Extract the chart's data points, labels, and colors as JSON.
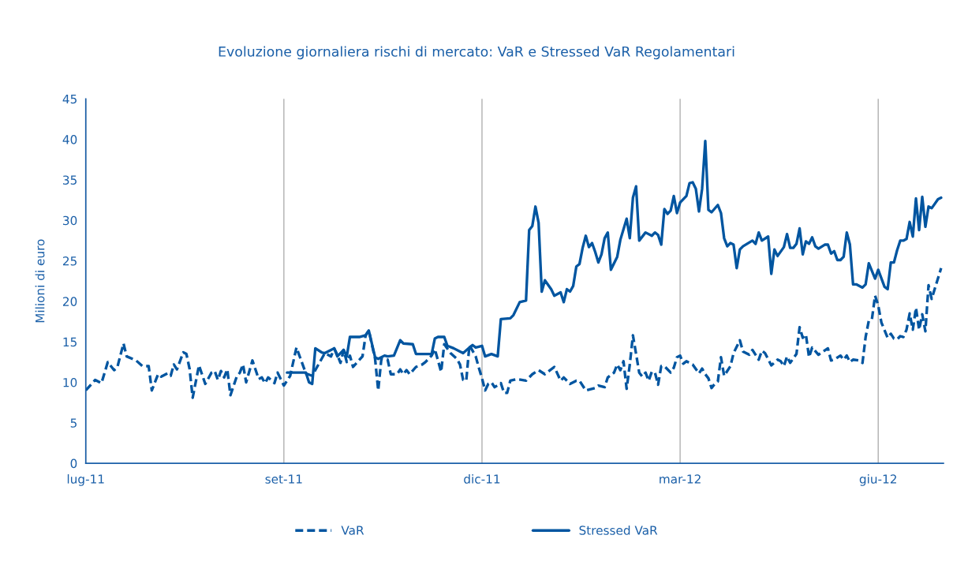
{
  "chart_data": {
    "type": "line",
    "title": "Evoluzione giornaliera rischi di mercato: VaR e Stressed VaR Regolamentari",
    "ylabel": "Milioni di euro",
    "categories": [
      "lug-11",
      null,
      null,
      null,
      null,
      null,
      null,
      null,
      null,
      null,
      null,
      null,
      null,
      null,
      null,
      null,
      null,
      null,
      null,
      null,
      null,
      null,
      null,
      null,
      null,
      null,
      null,
      null,
      null,
      null,
      null,
      null,
      null,
      null,
      null,
      null,
      null,
      null,
      null,
      null,
      null,
      null,
      null,
      null,
      null,
      null,
      null,
      null,
      null,
      null,
      null,
      null,
      null,
      null,
      null,
      null,
      null,
      null,
      null,
      null,
      null,
      null,
      null,
      "set-11",
      null,
      null,
      null,
      null,
      null,
      null,
      null,
      null,
      null,
      null,
      null,
      null,
      null,
      null,
      null,
      null,
      null,
      null,
      null,
      null,
      null,
      null,
      null,
      null,
      null,
      null,
      null,
      null,
      null,
      null,
      null,
      null,
      null,
      null,
      null,
      null,
      null,
      null,
      null,
      null,
      null,
      null,
      null,
      null,
      null,
      null,
      null,
      null,
      null,
      null,
      null,
      null,
      null,
      null,
      null,
      null,
      null,
      null,
      null,
      null,
      null,
      null,
      "dic-11",
      null,
      null,
      null,
      null,
      null,
      null,
      null,
      null,
      null,
      null,
      null,
      null,
      null,
      null,
      null,
      null,
      null,
      null,
      null,
      null,
      null,
      null,
      null,
      null,
      null,
      null,
      null,
      null,
      null,
      null,
      null,
      null,
      null,
      null,
      null,
      null,
      null,
      null,
      null,
      null,
      null,
      null,
      null,
      null,
      null,
      null,
      null,
      null,
      null,
      null,
      null,
      null,
      null,
      null,
      null,
      null,
      null,
      null,
      null,
      null,
      null,
      null,
      "mar-12",
      null,
      null,
      null,
      null,
      null,
      null,
      null,
      null,
      null,
      null,
      null,
      null,
      null,
      null,
      null,
      null,
      null,
      null,
      null,
      null,
      null,
      null,
      null,
      null,
      null,
      null,
      null,
      null,
      null,
      null,
      null,
      null,
      null,
      null,
      null,
      null,
      null,
      null,
      null,
      null,
      null,
      null,
      null,
      null,
      null,
      null,
      null,
      null,
      null,
      null,
      null,
      null,
      null,
      null,
      null,
      null,
      null,
      null,
      null,
      null,
      null,
      null,
      "giu-12",
      null,
      null,
      null,
      null,
      null,
      null,
      null,
      null,
      null,
      null,
      null,
      null,
      null,
      null,
      null,
      null,
      null,
      null,
      null,
      null
    ],
    "ylim": [
      0,
      45
    ],
    "yticks": [
      0,
      5,
      10,
      15,
      20,
      25,
      30,
      35,
      40,
      45
    ],
    "grid": "x",
    "legend": "bottom",
    "series": [
      {
        "name": "VaR",
        "color": "#0055a0",
        "line_style": "dashed",
        "values": [
          9.0,
          null,
          null,
          10.3,
          null,
          9.9,
          null,
          12.5,
          null,
          11.5,
          11.8,
          null,
          14.8,
          13.2,
          null,
          null,
          12.7,
          null,
          12.0,
          null,
          12.0,
          9.0,
          null,
          11.0,
          10.7,
          null,
          11.1,
          10.8,
          12.2,
          11.6,
          null,
          13.7,
          13.5,
          11.7,
          8.1,
          null,
          12.1,
          null,
          9.8,
          null,
          11.2,
          11.4,
          10.3,
          11.4,
          10.6,
          11.6,
          8.4,
          null,
          10.7,
          11.2,
          12.2,
          10.0,
          null,
          12.7,
          null,
          10.4,
          10.6,
          9.9,
          10.6,
          null,
          9.9,
          11.2,
          null,
          9.6,
          null,
          10.8,
          null,
          14.3,
          null,
          null,
          11.1,
          null,
          10.8,
          null,
          12.2,
          null,
          13.6,
          null,
          13.2,
          14.2,
          13.4,
          12.4,
          14.0,
          12.5,
          13.3,
          11.9,
          null,
          null,
          13.2,
          15.8,
          16.4,
          null,
          12.9,
          9.0,
          12.9,
          null,
          12.8,
          11.0,
          null,
          11.0,
          11.6,
          11.0,
          11.5,
          11.0,
          null,
          11.9,
          null,
          12.2,
          12.5,
          null,
          13.3,
          14.1,
          null,
          11.3,
          14.7,
          null,
          13.6,
          null,
          12.9,
          12.2,
          10.3,
          10.2,
          14.6,
          null,
          13.2,
          11.8,
          10.5,
          9.0,
          9.8,
          10.0,
          9.4,
          null,
          9.9,
          8.7,
          8.7,
          10.2,
          null,
          10.4,
          null,
          null,
          10.2,
          null,
          11.0,
          null,
          11.5,
          null,
          11.0,
          null,
          null,
          11.9,
          null,
          10.2,
          10.6,
          null,
          9.8,
          null,
          10.2,
          10.2,
          null,
          9.0,
          null,
          null,
          9.3,
          9.6,
          null,
          9.4,
          10.6,
          null,
          11.2,
          12.2,
          11.5,
          12.6,
          9.2,
          12.2,
          15.8,
          null,
          11.2,
          10.7,
          11.2,
          10.2,
          11.3,
          11.2,
          9.7,
          12.0,
          12.0,
          null,
          11.2,
          11.8,
          13.1,
          13.3,
          12.3,
          12.6,
          null,
          12.2,
          null,
          11.1,
          11.7,
          11.0,
          10.5,
          9.3,
          9.8,
          10.1,
          13.1,
          10.8,
          null,
          12.0,
          13.6,
          null,
          15.2,
          13.8,
          null,
          13.4,
          14.0,
          null,
          12.8,
          13.9,
          13.6,
          null,
          12.1,
          null,
          12.8,
          12.6,
          12.0,
          13.2,
          12.4,
          null,
          13.5,
          16.8,
          15.5,
          15.9,
          13.1,
          14.3,
          null,
          13.4,
          null,
          null,
          14.2,
          12.7,
          12.8,
          null,
          13.3,
          12.8,
          13.3,
          12.5,
          12.8,
          null,
          12.7,
          12.4,
          15.6,
          17.6,
          17.8,
          20.7,
          19.5,
          17.4,
          null,
          15.5,
          16.0,
          15.4,
          15.3,
          15.7,
          15.6,
          16.5,
          18.5,
          16.5,
          19.2,
          16.5,
          18.4,
          16.3,
          22.0,
          20.3,
          null,
          null,
          24.1
        ]
      },
      {
        "name": "Stressed VaR",
        "color": "#0055a0",
        "line_style": "solid",
        "values": [
          null,
          null,
          null,
          null,
          null,
          null,
          null,
          null,
          null,
          null,
          null,
          null,
          null,
          null,
          null,
          null,
          null,
          null,
          null,
          null,
          null,
          null,
          null,
          null,
          null,
          null,
          null,
          null,
          null,
          null,
          null,
          null,
          null,
          null,
          null,
          null,
          null,
          null,
          null,
          null,
          null,
          null,
          null,
          null,
          null,
          null,
          null,
          null,
          null,
          null,
          null,
          null,
          null,
          null,
          null,
          null,
          null,
          null,
          null,
          null,
          null,
          null,
          null,
          null,
          11.2,
          null,
          null,
          null,
          null,
          null,
          11.2,
          10.0,
          9.8,
          14.2,
          null,
          13.7,
          13.6,
          null,
          14.0,
          14.2,
          13.2,
          null,
          14.0,
          13.2,
          15.6,
          null,
          null,
          15.6,
          null,
          15.8,
          16.4,
          null,
          13.1,
          12.9,
          null,
          13.3,
          13.2,
          null,
          13.3,
          null,
          15.2,
          14.8,
          null,
          null,
          14.7,
          13.5,
          null,
          null,
          null,
          null,
          13.5,
          15.4,
          15.6,
          null,
          15.6,
          14.5,
          null,
          14.2,
          null,
          13.8,
          13.6,
          null,
          14.3,
          14.6,
          14.3,
          null,
          14.5,
          13.2,
          null,
          13.5,
          null,
          13.2,
          17.8,
          null,
          null,
          17.9,
          18.3,
          null,
          19.9,
          null,
          20.1,
          28.8,
          29.3,
          31.7,
          29.7,
          21.2,
          22.6,
          null,
          21.5,
          20.7,
          null,
          21.1,
          19.9,
          21.5,
          21.2,
          21.9,
          24.3,
          24.6,
          26.6,
          28.1,
          26.7,
          27.2,
          26.1,
          24.8,
          25.8,
          27.8,
          28.5,
          23.9,
          null,
          25.5,
          27.6,
          null,
          30.2,
          27.8,
          32.8,
          34.2,
          27.5,
          null,
          28.5,
          null,
          28.1,
          28.5,
          28.2,
          27.0,
          31.4,
          30.8,
          31.2,
          33.0,
          30.9,
          32.2,
          null,
          33.0,
          34.6,
          34.7,
          33.9,
          31.1,
          33.9,
          39.8,
          31.3,
          31.0,
          null,
          31.9,
          30.9,
          27.8,
          26.8,
          27.2,
          27.0,
          24.1,
          26.4,
          26.8,
          null,
          null,
          27.5,
          27.1,
          28.5,
          27.5,
          null,
          28.0,
          23.4,
          26.4,
          25.6,
          null,
          26.7,
          28.3,
          26.6,
          26.6,
          27.1,
          29.0,
          25.8,
          27.4,
          27.1,
          27.9,
          26.8,
          26.5,
          null,
          27.0,
          27.0,
          25.9,
          26.2,
          25.1,
          25.1,
          25.5,
          28.5,
          27.0,
          22.1,
          22.1,
          null,
          21.7,
          22.1,
          24.7,
          null,
          22.8,
          23.9,
          null,
          21.8,
          21.5,
          24.8,
          24.8,
          26.3,
          27.5,
          27.5,
          27.7,
          29.8,
          28.0,
          32.7,
          28.8,
          32.9,
          29.2,
          31.7,
          31.5,
          null,
          32.6,
          32.8
        ]
      }
    ]
  }
}
